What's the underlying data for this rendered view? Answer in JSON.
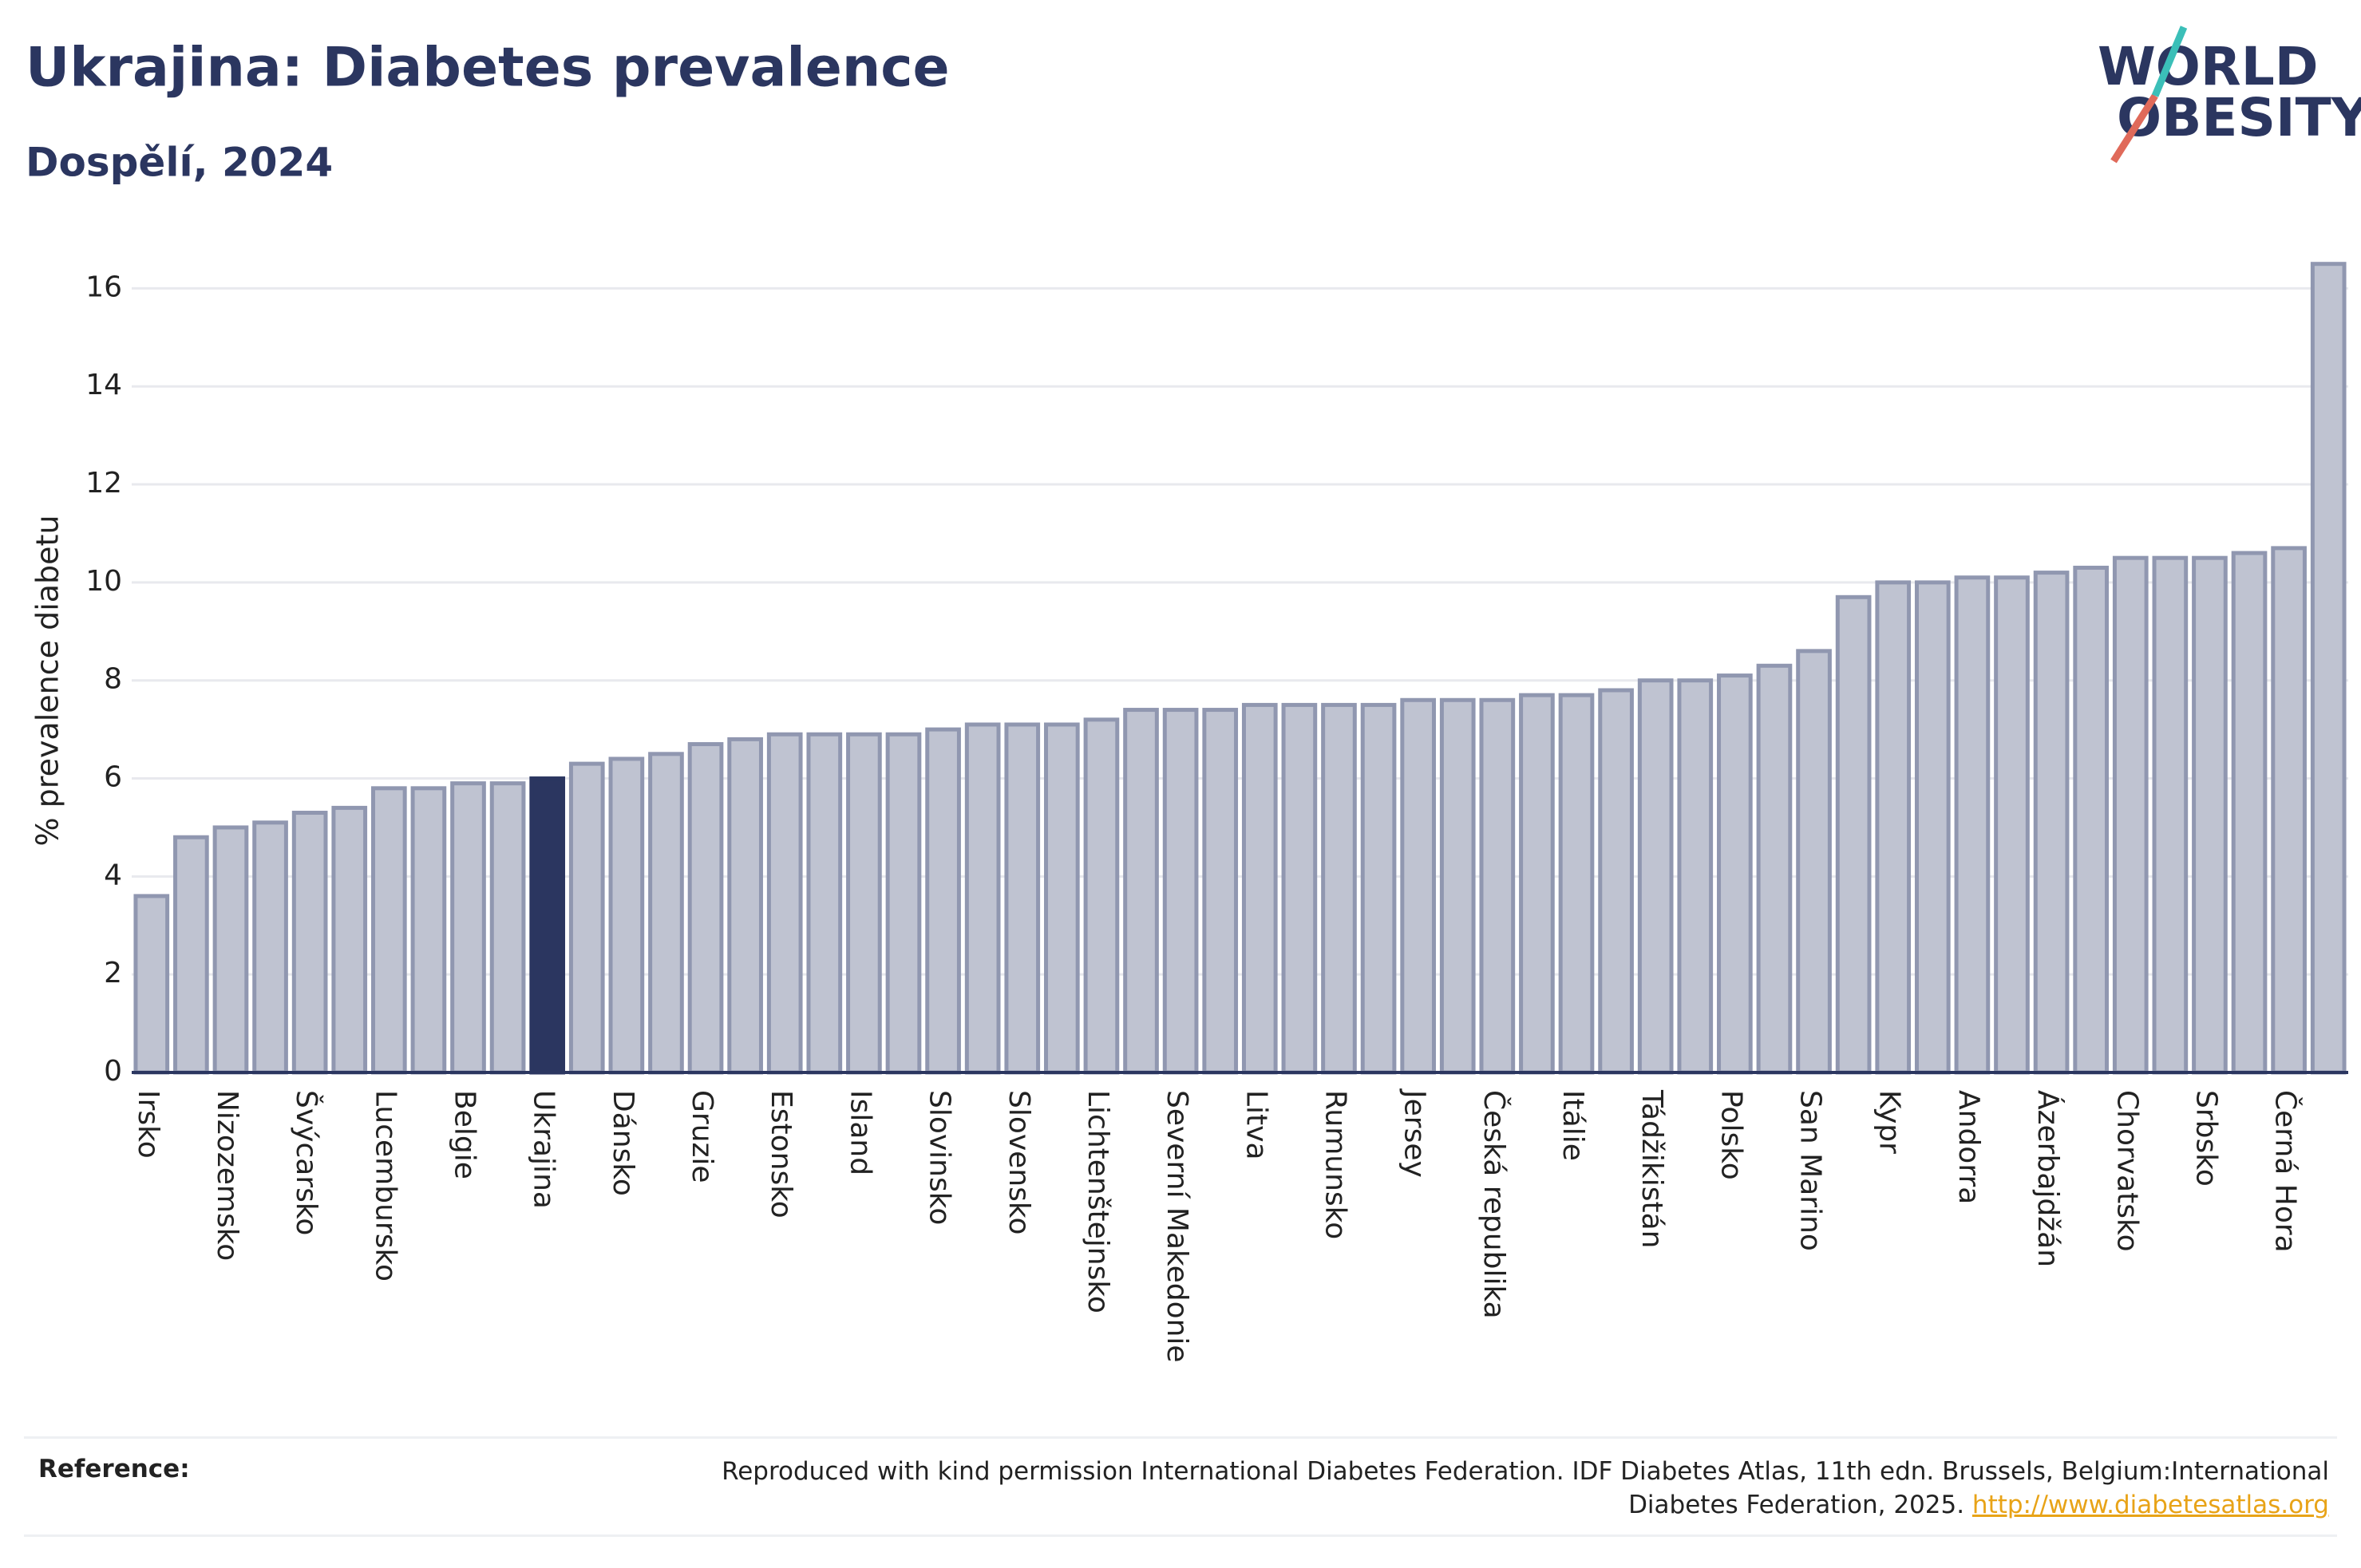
{
  "chart_data": {
    "type": "bar",
    "title": "Ukrajina: Diabetes prevalence",
    "subtitle": "Dospělí, 2024",
    "y_label": "% prevalence diabetu",
    "categories": [
      "Irsko",
      null,
      "Nizozemsko",
      null,
      "Švýcarsko",
      null,
      "Lucembursko",
      null,
      "Belgie",
      null,
      "Ukrajina",
      null,
      "Dánsko",
      null,
      "Gruzie",
      null,
      "Estonsko",
      null,
      "Island",
      null,
      "Slovinsko",
      null,
      "Slovensko",
      null,
      "Lichtenštejnsko",
      null,
      "Severní Makedonie",
      null,
      "Litva",
      null,
      "Rumunsko",
      null,
      "Jersey",
      null,
      "Česká republika",
      null,
      "Itálie",
      null,
      "Tádžikistán",
      null,
      "Polsko",
      null,
      "San Marino",
      null,
      "Kypr",
      null,
      "Andorra",
      null,
      "Ázerbajdžán",
      null,
      "Chorvatsko",
      null,
      "Srbsko",
      null,
      "Černá Hora",
      null
    ],
    "values": [
      3.6,
      4.8,
      5.0,
      5.1,
      5.3,
      5.4,
      5.8,
      5.8,
      5.9,
      5.9,
      6.0,
      6.3,
      6.4,
      6.5,
      6.7,
      6.8,
      6.9,
      6.9,
      6.9,
      6.9,
      7.0,
      7.1,
      7.1,
      7.1,
      7.2,
      7.4,
      7.4,
      7.4,
      7.5,
      7.5,
      7.5,
      7.5,
      7.6,
      7.6,
      7.6,
      7.7,
      7.7,
      7.8,
      8.0,
      8.0,
      8.1,
      8.3,
      8.6,
      9.7,
      10.0,
      10.0,
      10.1,
      10.1,
      10.2,
      10.3,
      10.5,
      10.5,
      10.5,
      10.6,
      10.7,
      16.5
    ],
    "color": "#bfc3d1",
    "stroke_color": "#9097b0",
    "highlight": "Ukrajina",
    "highlight_color": "#2b3660",
    "ylim": [
      0,
      17
    ],
    "yticks": [
      0,
      2,
      4,
      6,
      8,
      10,
      12,
      14,
      16
    ],
    "grid": true
  },
  "logo": {
    "line1": "WORLD",
    "line2": "OBESITY"
  },
  "reference": {
    "label": "Reference:",
    "text": "Reproduced with kind permission International Diabetes Federation. IDF Diabetes Atlas, 11th edn. Brussels, Belgium:International Diabetes Federation, 2025.",
    "link": "http://www.diabetesatlas.org"
  }
}
